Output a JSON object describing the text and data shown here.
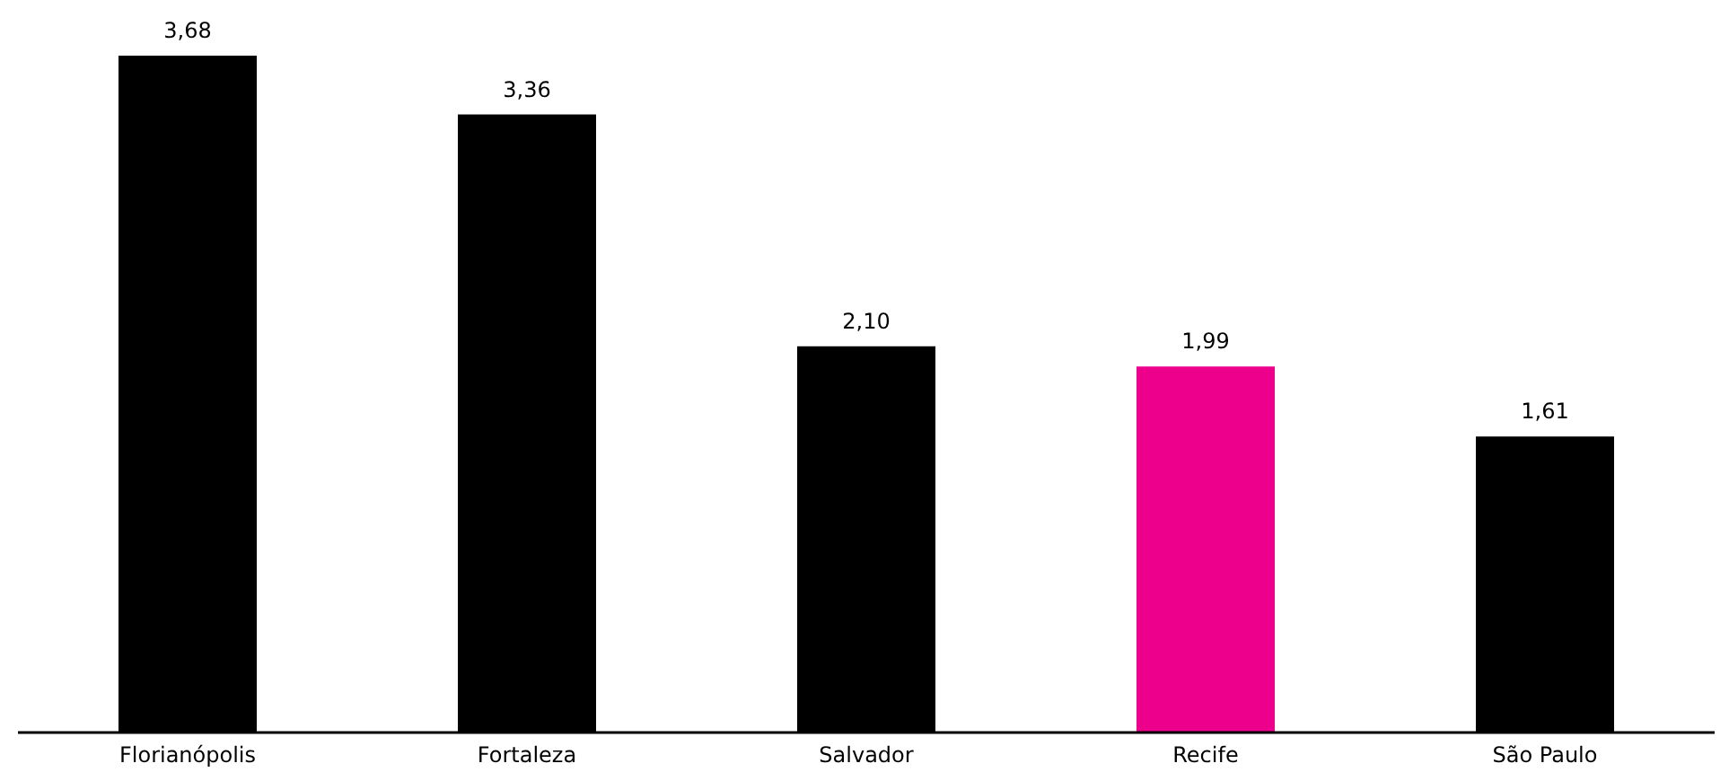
{
  "chart_data": {
    "type": "bar",
    "categories": [
      "Florianópolis",
      "Fortaleza",
      "Salvador",
      "Recife",
      "São Paulo"
    ],
    "values": [
      3.68,
      3.36,
      2.1,
      1.99,
      1.61
    ],
    "value_labels": [
      "3,68",
      "3,36",
      "2,10",
      "1,99",
      "1,61"
    ],
    "colors": [
      "#000000",
      "#000000",
      "#000000",
      "#ec008c",
      "#000000"
    ]
  }
}
